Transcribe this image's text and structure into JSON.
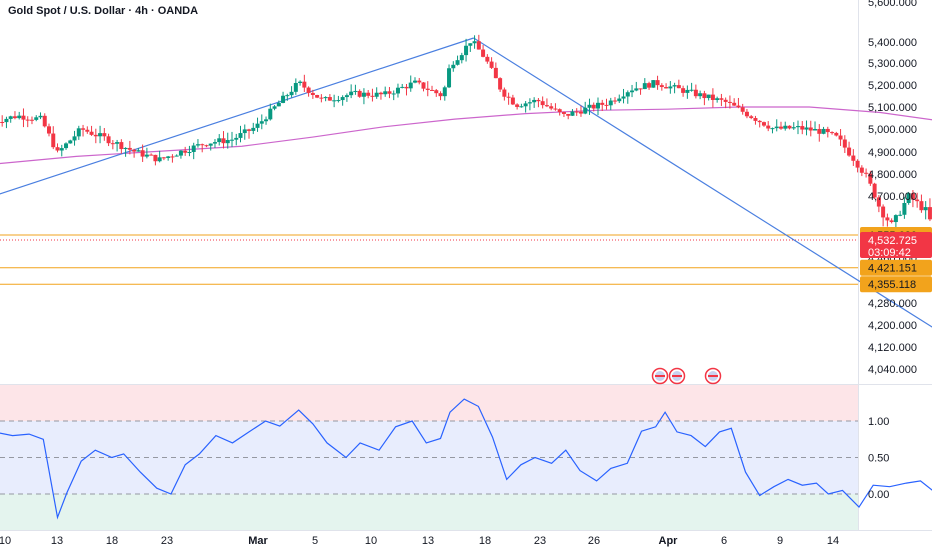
{
  "header": {
    "title": "Gold Spot / U.S. Dollar · 4h · OANDA"
  },
  "colors": {
    "up": "#089981",
    "down": "#f23645",
    "ma": "#cc66cc",
    "trend": "#4a7fe0",
    "channel": "#cc66dd",
    "level": "#f2a31c",
    "arrow": "#5ad1e6",
    "oscillator": "#2962ff",
    "ob_zone": "#fde5e8",
    "mid_zone": "#e8edfd",
    "os_zone": "#e4f4ee",
    "current_price_tag": "#f23645"
  },
  "price_axis": {
    "ticks": [
      "5,600.000",
      "5,400.000",
      "5,300.000",
      "5,200.000",
      "5,100.000",
      "5,000.000",
      "4,900.000",
      "4,800.000",
      "4,700.000",
      "4,460.000",
      "4,280.000",
      "4,200.000",
      "4,120.000",
      "4,040.000"
    ]
  },
  "price_tags": [
    {
      "label": "4,555.630",
      "style": "level",
      "value": 4555.63
    },
    {
      "label": "4,532.725",
      "sub": "03:09:42",
      "style": "current",
      "value": 4532.725
    },
    {
      "label": "4,421.151",
      "style": "level",
      "value": 4421.151
    },
    {
      "label": "4,355.118",
      "style": "level",
      "value": 4355.118
    }
  ],
  "oscillator_axis": {
    "ticks": [
      "1.00",
      "0.50",
      "0.00"
    ]
  },
  "time_axis": {
    "ticks": [
      "10",
      "13",
      "18",
      "23",
      "Mar",
      "5",
      "10",
      "13",
      "18",
      "23",
      "26",
      "Apr",
      "6",
      "9",
      "14"
    ],
    "bold": [
      "Mar",
      "Apr"
    ]
  },
  "chart_data": {
    "type": "candlestick",
    "title": "Gold Spot / U.S. Dollar · 4h · OANDA",
    "symbol": "XAUUSD",
    "timeframe": "4h",
    "source": "OANDA",
    "y_range": [
      4000,
      5600
    ],
    "oscillator_range": [
      -0.1,
      1.25
    ],
    "horizontal_levels": [
      4555.63,
      4421.151,
      4355.118
    ],
    "current_price": 4532.725,
    "countdown": "03:09:42",
    "price_path": [
      [
        9.5,
        5035
      ],
      [
        10.5,
        5060
      ],
      [
        11.5,
        5045
      ],
      [
        12.2,
        4895
      ],
      [
        13.2,
        5000
      ],
      [
        14.2,
        4960
      ],
      [
        15.5,
        4900
      ],
      [
        16.5,
        4865
      ],
      [
        17.5,
        4905
      ],
      [
        18.5,
        4940
      ],
      [
        19.6,
        4955
      ],
      [
        20.6,
        5010
      ],
      [
        21.4,
        5100
      ],
      [
        22.4,
        5210
      ],
      [
        23.4,
        5130
      ],
      [
        24.7,
        5160
      ],
      [
        26,
        5155
      ],
      [
        27.3,
        5210
      ],
      [
        28.5,
        5150
      ],
      [
        28.8,
        5290
      ],
      [
        29.3,
        5350
      ],
      [
        29.7,
        5410
      ],
      [
        30.3,
        5320
      ],
      [
        31,
        5170
      ],
      [
        31.6,
        5110
      ],
      [
        32.5,
        5130
      ],
      [
        33.6,
        5060
      ],
      [
        34.5,
        5090
      ],
      [
        35.5,
        5120
      ],
      [
        36.4,
        5180
      ],
      [
        37.5,
        5210
      ],
      [
        38.5,
        5180
      ],
      [
        39.5,
        5150
      ],
      [
        40.5,
        5120
      ],
      [
        41.5,
        5060
      ],
      [
        42.5,
        5000
      ],
      [
        43.5,
        5005
      ],
      [
        44.5,
        4990
      ],
      [
        45.2,
        4960
      ],
      [
        45.8,
        4880
      ],
      [
        46.4,
        4790
      ],
      [
        47,
        4650
      ],
      [
        47.5,
        4590
      ],
      [
        48.2,
        4700
      ],
      [
        49,
        4640
      ],
      [
        49.6,
        4450
      ],
      [
        50.2,
        4250
      ],
      [
        50.6,
        4100
      ],
      [
        51,
        4400
      ],
      [
        51.3,
        4380
      ],
      [
        52.5,
        4330
      ],
      [
        53.2,
        4480
      ],
      [
        54,
        4555
      ],
      [
        54.7,
        4520
      ],
      [
        55.5,
        4510
      ],
      [
        56.2,
        4450
      ],
      [
        57,
        4380
      ],
      [
        57.8,
        4440
      ],
      [
        58.5,
        4420
      ],
      [
        59.3,
        4480
      ],
      [
        60,
        4530
      ],
      [
        60.5,
        4533
      ]
    ],
    "ma_path": [
      [
        9.5,
        4845
      ],
      [
        13,
        4880
      ],
      [
        16,
        4900
      ],
      [
        20,
        4925
      ],
      [
        23,
        4965
      ],
      [
        26,
        5010
      ],
      [
        29,
        5045
      ],
      [
        32,
        5070
      ],
      [
        35,
        5085
      ],
      [
        38,
        5090
      ],
      [
        41,
        5100
      ],
      [
        44,
        5100
      ],
      [
        47,
        5075
      ],
      [
        50,
        5030
      ],
      [
        53,
        4950
      ],
      [
        56,
        4860
      ],
      [
        59,
        4800
      ]
    ],
    "trendlines": [
      {
        "from": [
          9.5,
          4700
        ],
        "to": [
          29.8,
          5420
        ]
      },
      {
        "from": [
          29.8,
          5420
        ],
        "to": [
          50.9,
          4100
        ]
      }
    ],
    "channel": {
      "upper": [
        [
          51.4,
          4580
        ],
        [
          64.9,
          4740
        ]
      ],
      "lower": [
        [
          51.4,
          4310
        ],
        [
          64.9,
          4450
        ]
      ],
      "mid": [
        [
          54,
          4440
        ],
        [
          64.5,
          4575
        ]
      ]
    },
    "projection_arrows": [
      {
        "from": [
          59.8,
          4530
        ],
        "to": [
          61.2,
          4460
        ]
      },
      {
        "from": [
          61.8,
          4450
        ],
        "to": [
          64.6,
          4710
        ]
      },
      {
        "from": [
          64.9,
          4710
        ],
        "to": [
          69.2,
          4380
        ]
      }
    ],
    "oscillator_levels": [
      1.0,
      0.5,
      0.0
    ],
    "oscillator": [
      [
        9.5,
        0.85
      ],
      [
        10.3,
        0.8
      ],
      [
        11,
        0.82
      ],
      [
        11.6,
        0.75
      ],
      [
        12.2,
        -0.32
      ],
      [
        12.6,
        0.02
      ],
      [
        13.2,
        0.45
      ],
      [
        13.8,
        0.6
      ],
      [
        14.5,
        0.5
      ],
      [
        15,
        0.55
      ],
      [
        15.7,
        0.3
      ],
      [
        16.4,
        0.08
      ],
      [
        17,
        0.0
      ],
      [
        17.6,
        0.4
      ],
      [
        18.2,
        0.55
      ],
      [
        18.9,
        0.8
      ],
      [
        19.6,
        0.7
      ],
      [
        20.3,
        0.85
      ],
      [
        21,
        1.0
      ],
      [
        21.6,
        0.93
      ],
      [
        22.4,
        1.15
      ],
      [
        23,
        0.96
      ],
      [
        23.6,
        0.7
      ],
      [
        24.4,
        0.5
      ],
      [
        25,
        0.7
      ],
      [
        25.8,
        0.6
      ],
      [
        26.5,
        0.92
      ],
      [
        27.2,
        1.0
      ],
      [
        27.8,
        0.7
      ],
      [
        28.4,
        0.76
      ],
      [
        28.8,
        1.12
      ],
      [
        29.4,
        1.3
      ],
      [
        30,
        1.2
      ],
      [
        30.6,
        0.78
      ],
      [
        31.2,
        0.2
      ],
      [
        31.8,
        0.4
      ],
      [
        32.4,
        0.5
      ],
      [
        33.1,
        0.42
      ],
      [
        33.7,
        0.6
      ],
      [
        34.3,
        0.32
      ],
      [
        35,
        0.18
      ],
      [
        35.6,
        0.35
      ],
      [
        36.3,
        0.42
      ],
      [
        36.9,
        0.86
      ],
      [
        37.5,
        0.92
      ],
      [
        37.9,
        1.12
      ],
      [
        38.4,
        0.85
      ],
      [
        39,
        0.8
      ],
      [
        39.6,
        0.65
      ],
      [
        40.2,
        0.85
      ],
      [
        40.7,
        0.9
      ],
      [
        41.3,
        0.3
      ],
      [
        41.9,
        -0.02
      ],
      [
        42.5,
        0.1
      ],
      [
        43.1,
        0.2
      ],
      [
        43.7,
        0.12
      ],
      [
        44.3,
        0.15
      ],
      [
        44.8,
        0.0
      ],
      [
        45.4,
        0.05
      ],
      [
        46.1,
        -0.18
      ],
      [
        46.7,
        0.12
      ],
      [
        47.4,
        0.1
      ],
      [
        48.1,
        0.15
      ],
      [
        48.7,
        0.18
      ],
      [
        49.4,
        0.0
      ],
      [
        50,
        -0.2
      ],
      [
        50.7,
        -0.1
      ],
      [
        51.2,
        0.22
      ],
      [
        51.8,
        0.22
      ],
      [
        52.5,
        0.38
      ],
      [
        53.3,
        0.7
      ],
      [
        54,
        0.8
      ],
      [
        54.7,
        0.7
      ],
      [
        55.3,
        0.88
      ],
      [
        56,
        0.5
      ],
      [
        56.6,
        0.35
      ],
      [
        57.3,
        0.38
      ],
      [
        57.9,
        0.55
      ],
      [
        58.6,
        0.65
      ],
      [
        59.2,
        0.42
      ],
      [
        59.8,
        0.7
      ],
      [
        60.5,
        0.75
      ]
    ]
  }
}
